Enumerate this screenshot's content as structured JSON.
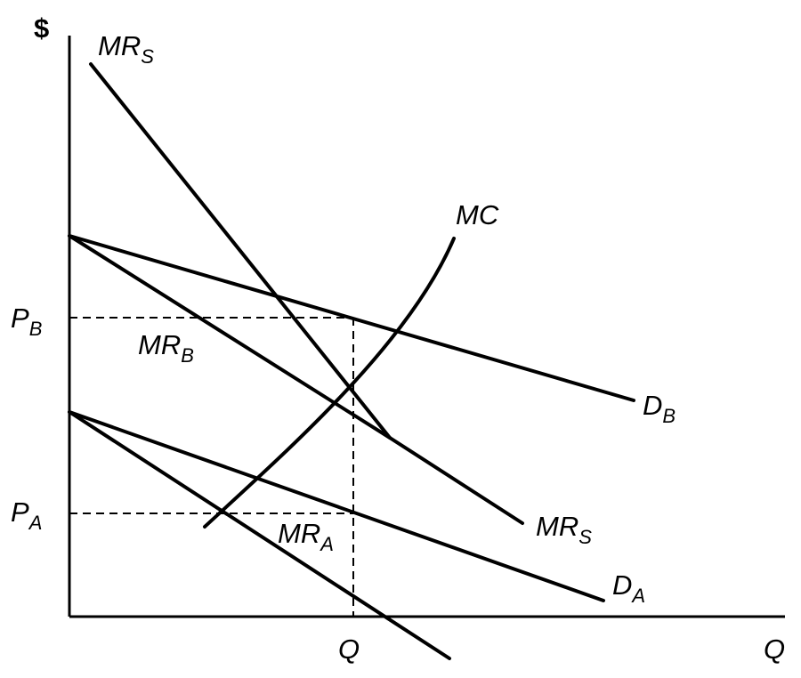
{
  "axes": {
    "y_label": "$",
    "x_label": "Q"
  },
  "price_labels": [
    {
      "main": "P",
      "sub": "B"
    },
    {
      "main": "P",
      "sub": "A"
    }
  ],
  "quantity_label": "Q",
  "curve_labels": [
    {
      "main": "MR",
      "sub": "S"
    },
    {
      "main": "MC"
    },
    {
      "main": "MR",
      "sub": "B"
    },
    {
      "main": "D",
      "sub": "B"
    },
    {
      "main": "MR",
      "sub": "S"
    },
    {
      "main": "MR",
      "sub": "A"
    },
    {
      "main": "D",
      "sub": "A"
    }
  ]
}
